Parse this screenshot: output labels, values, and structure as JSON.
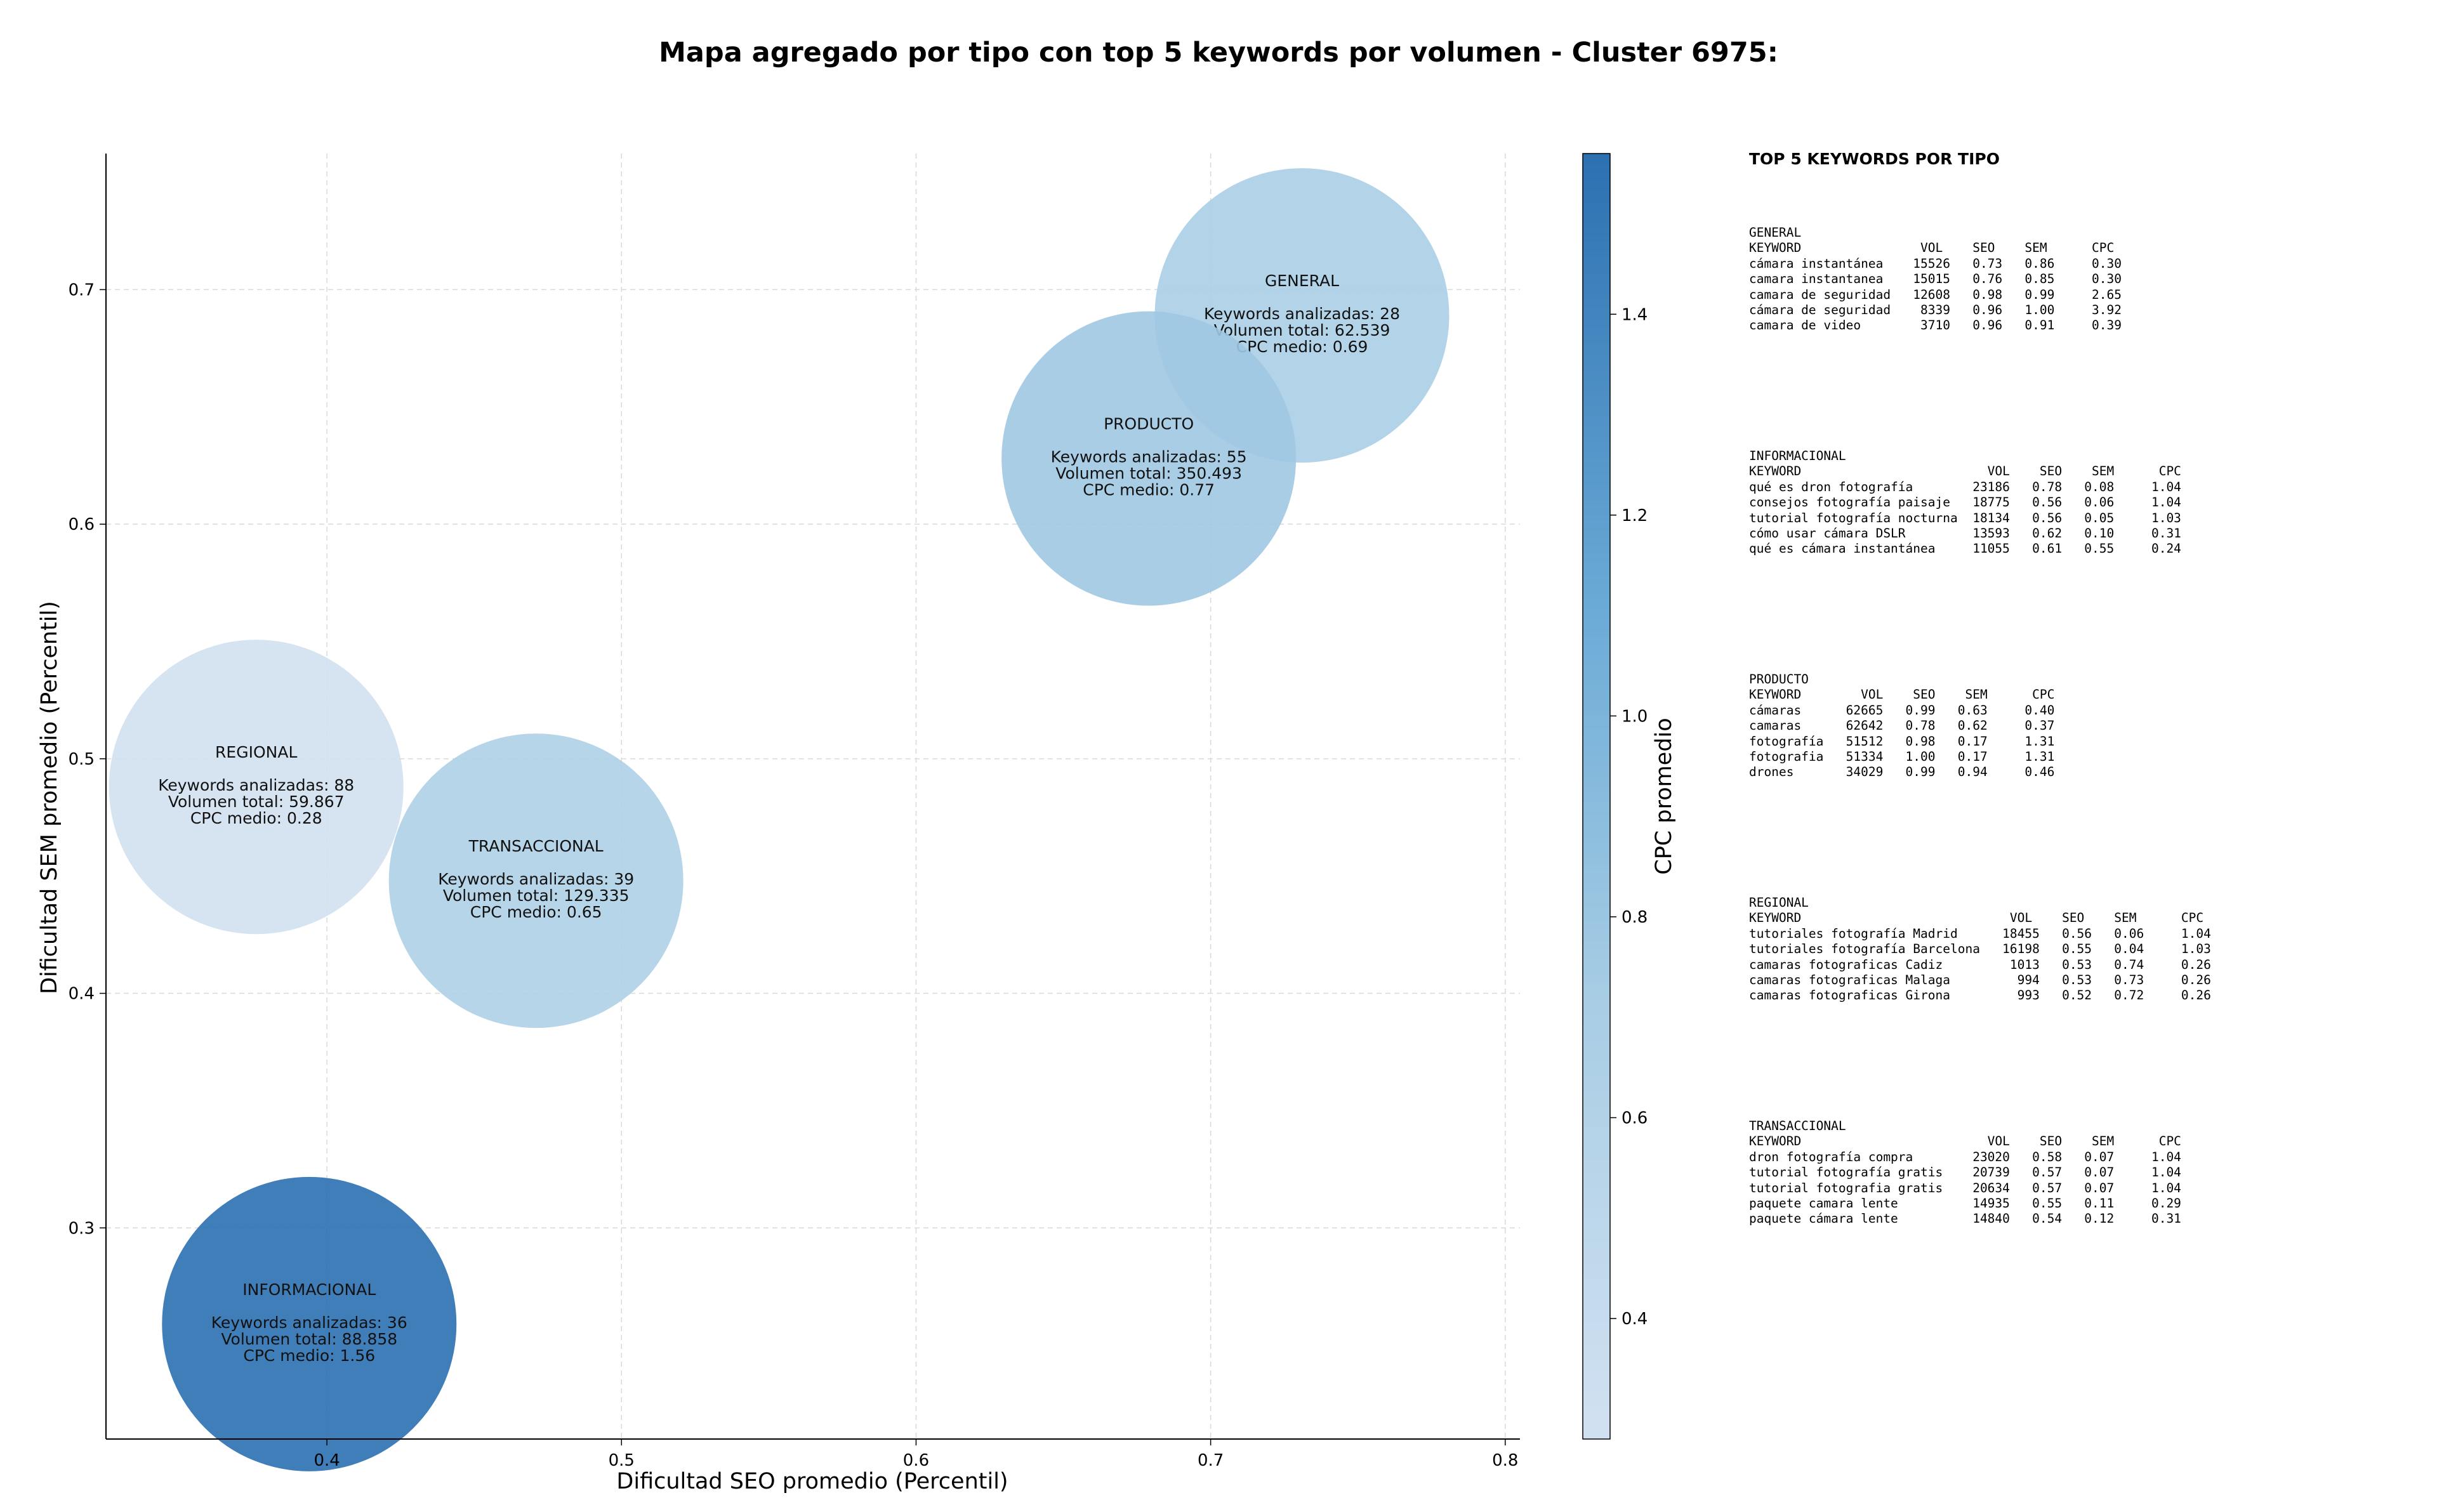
{
  "chart_data": {
    "type": "scatter",
    "title": "Mapa agregado por tipo con top 5 keywords por volumen - Cluster 6975:",
    "xlabel": "Dificultad SEO promedio (Percentil)",
    "ylabel": "Dificultad SEM promedio (Percentil)",
    "xlim": [
      0.325,
      0.805
    ],
    "ylim": [
      0.21,
      0.758
    ],
    "xticks": [
      0.4,
      0.5,
      0.6,
      0.7,
      0.8
    ],
    "xtick_labels": [
      "0.4",
      "0.5",
      "0.6",
      "0.7",
      "0.8"
    ],
    "yticks": [
      0.3,
      0.4,
      0.5,
      0.6,
      0.7
    ],
    "ytick_labels": [
      "0.3",
      "0.4",
      "0.5",
      "0.6",
      "0.7"
    ],
    "grid": true,
    "colorbar": {
      "label": "CPC promedio",
      "range": [
        0.28,
        1.56
      ],
      "ticks": [
        0.4,
        0.6,
        0.8,
        1.0,
        1.2,
        1.4
      ],
      "tick_labels": [
        "0.4",
        "0.6",
        "0.8",
        "1.0",
        "1.2",
        "1.4"
      ]
    },
    "points": [
      {
        "name": "GENERAL",
        "x": 0.731,
        "y": 0.689,
        "cpc": 0.69,
        "line1": "Keywords analizadas: 28",
        "line2": "Volumen total: 62.539",
        "line3": "CPC medio: 0.69"
      },
      {
        "name": "PRODUCTO",
        "x": 0.679,
        "y": 0.628,
        "cpc": 0.77,
        "line1": "Keywords analizadas: 55",
        "line2": "Volumen total: 350.493",
        "line3": "CPC medio: 0.77"
      },
      {
        "name": "REGIONAL",
        "x": 0.376,
        "y": 0.488,
        "cpc": 0.28,
        "line1": "Keywords analizadas: 88",
        "line2": "Volumen total: 59.867",
        "line3": "CPC medio: 0.28"
      },
      {
        "name": "TRANSACCIONAL",
        "x": 0.471,
        "y": 0.448,
        "cpc": 0.65,
        "line1": "Keywords analizadas: 39",
        "line2": "Volumen total: 129.335",
        "line3": "CPC medio: 0.65"
      },
      {
        "name": "INFORMACIONAL",
        "x": 0.394,
        "y": 0.259,
        "cpc": 1.56,
        "line1": "Keywords analizadas: 36",
        "line2": "Volumen total: 88.858",
        "line3": "CPC medio: 1.56"
      }
    ]
  },
  "side_panel": {
    "title": "TOP 5 KEYWORDS POR TIPO",
    "blocks": [
      {
        "text": "GENERAL\nKEYWORD                VOL    SEO    SEM      CPC\ncámara instantánea    15526   0.73   0.86     0.30\ncamara instantanea    15015   0.76   0.85     0.30\ncamara de seguridad   12608   0.98   0.99     2.65\ncámara de seguridad    8339   0.96   1.00     3.92\ncamara de video        3710   0.96   0.91     0.39"
      },
      {
        "text": "INFORMACIONAL\nKEYWORD                         VOL    SEO    SEM      CPC\nqué es dron fotografía        23186   0.78   0.08     1.04\nconsejos fotografía paisaje   18775   0.56   0.06     1.04\ntutorial fotografía nocturna  18134   0.56   0.05     1.03\ncómo usar cámara DSLR         13593   0.62   0.10     0.31\nqué es cámara instantánea     11055   0.61   0.55     0.24"
      },
      {
        "text": "PRODUCTO\nKEYWORD        VOL    SEO    SEM      CPC\ncámaras      62665   0.99   0.63     0.40\ncamaras      62642   0.78   0.62     0.37\nfotografía   51512   0.98   0.17     1.31\nfotografia   51334   1.00   0.17     1.31\ndrones       34029   0.99   0.94     0.46"
      },
      {
        "text": "REGIONAL\nKEYWORD                            VOL    SEO    SEM      CPC\ntutoriales fotografía Madrid      18455   0.56   0.06     1.04\ntutoriales fotografía Barcelona   16198   0.55   0.04     1.03\ncamaras fotograficas Cadiz         1013   0.53   0.74     0.26\ncamaras fotograficas Malaga         994   0.53   0.73     0.26\ncamaras fotograficas Girona         993   0.52   0.72     0.26"
      },
      {
        "text": "TRANSACCIONAL\nKEYWORD                         VOL    SEO    SEM      CPC\ndron fotografía compra        23020   0.58   0.07     1.04\ntutorial fotografía gratis    20739   0.57   0.07     1.04\ntutorial fotografia gratis    20634   0.57   0.07     1.04\npaquete camara lente          14935   0.55   0.11     0.29\npaquete cámara lente          14840   0.54   0.12     0.31"
      }
    ]
  }
}
